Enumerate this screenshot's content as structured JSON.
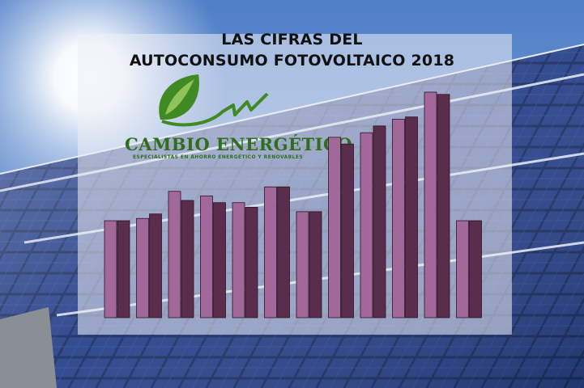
{
  "title": {
    "line1": "LAS CIFRAS DEL",
    "line2": "AUTOCONSUMO FOTOVOLTAICO  2018"
  },
  "logo": {
    "name": "CAMBIO ENERGÉTICO",
    "tagline": "ESPECIALISTAS EN AHORRO ENERGÉTICO Y RENOVABLES",
    "color": "#2f6e1c"
  },
  "colors": {
    "bar_light": "#a3689a",
    "bar_dark": "#5a2d4c",
    "sky": "#3c68b4"
  },
  "chart_data": {
    "type": "bar",
    "title": "",
    "xlabel": "",
    "ylabel": "",
    "grid": false,
    "legend": "none",
    "ylim": [
      0,
      100
    ],
    "categories": [
      "",
      "",
      "",
      "",
      "",
      "",
      "",
      "",
      "",
      "",
      "",
      ""
    ],
    "series": [
      {
        "values": [
          43,
          44,
          56,
          54,
          51,
          58,
          47,
          80,
          82,
          88,
          100,
          43
        ]
      },
      {
        "values": [
          43,
          46,
          52,
          51,
          49,
          58,
          47,
          77,
          85,
          89,
          99,
          43
        ]
      }
    ]
  }
}
